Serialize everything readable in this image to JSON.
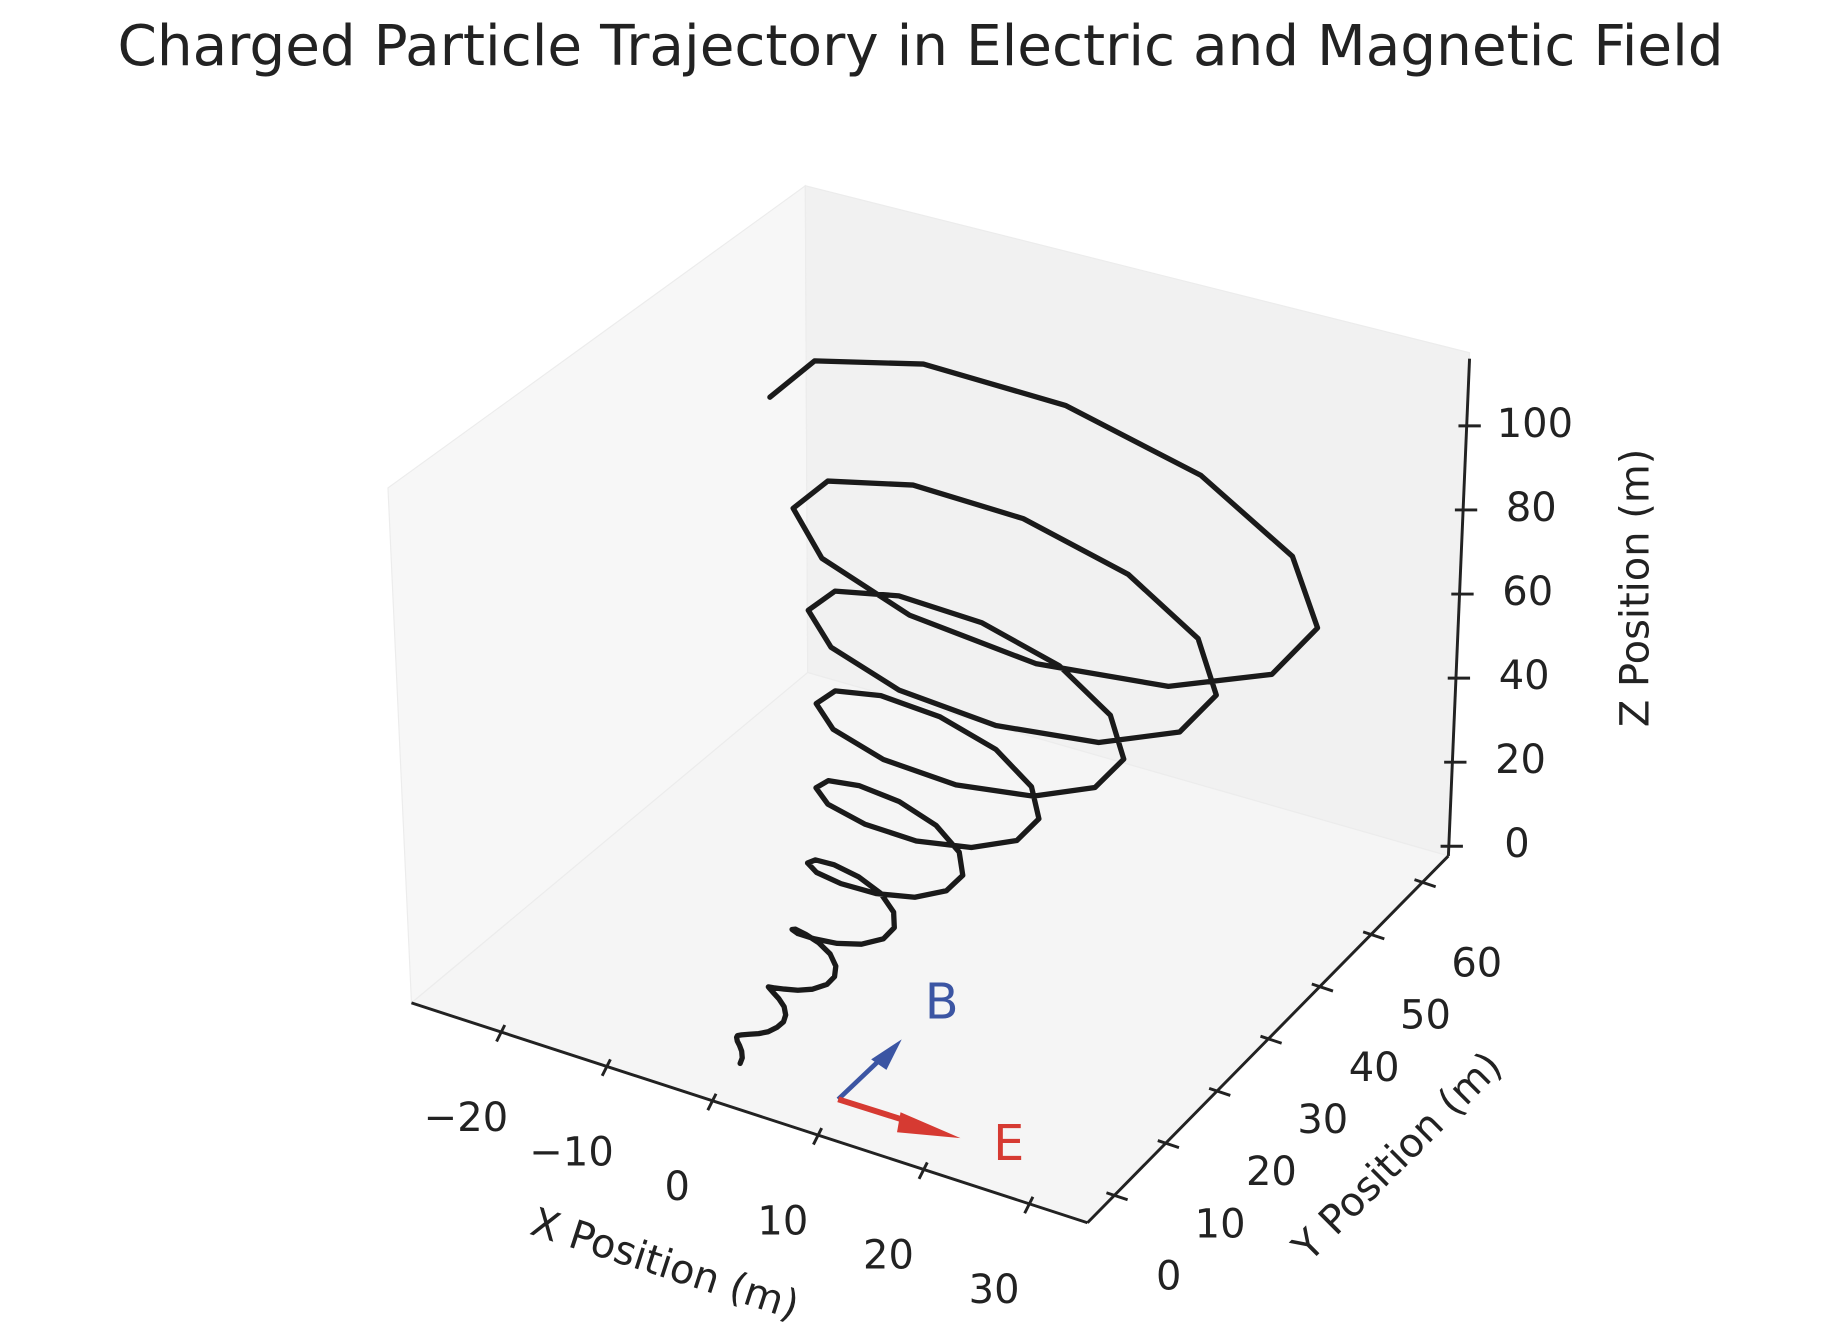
{
  "chart_data": {
    "type": "line3d",
    "title": "Charged Particle Trajectory in Electric and Magnetic Field",
    "x_label": "X Position (m)",
    "y_label": "Y Position (m)",
    "z_label": "Z Position (m)",
    "xlim": [
      -28.5,
      35.5
    ],
    "ylim": [
      -5.3,
      65
    ],
    "zlim": [
      -2.3,
      116
    ],
    "xticks": [
      {
        "value": -20,
        "label": "−20"
      },
      {
        "value": -10,
        "label": "−10"
      },
      0,
      10,
      20,
      30
    ],
    "yticks": [
      0,
      10,
      20,
      30,
      40,
      50,
      60
    ],
    "zticks": [
      0,
      20,
      40,
      60,
      80,
      100
    ],
    "series": [
      {
        "color": "#1a1a1a",
        "x": [
          0,
          -0.1,
          -0.5,
          -1,
          -1.5,
          -1.9,
          -2.1,
          -2.0,
          -1.6,
          -1,
          -0.4,
          0.1,
          0.4,
          0.3,
          -0.2,
          -1,
          -1.8,
          -2.5,
          -2.9,
          -2.7,
          -2.0,
          -1,
          0.1,
          1.1,
          1.5,
          1.3,
          0.4,
          -1,
          -2.5,
          -3.8,
          -4.4,
          -4.1,
          -2.9,
          -1,
          1,
          2.7,
          3.4,
          3.0,
          1.4,
          -1,
          -3.6,
          -5.7,
          -6.7,
          -6.1,
          -4.1,
          -1,
          2.3,
          4.9,
          6.1,
          5.4,
          2.8,
          -1,
          -5.1,
          -8.3,
          -9.7,
          -8.8,
          -5.6,
          -1,
          3.9,
          7.8,
          9.5,
          8.4,
          4.6,
          -1,
          -6.9,
          -11.5,
          -13.5,
          -12.1,
          -7.6,
          -1,
          6,
          11.4,
          13.7,
          12,
          6.7,
          -1,
          -9.1,
          -15.4,
          -18.1,
          -16.1,
          -9.9,
          -1,
          8.4,
          15.6,
          18.6,
          16.4,
          9.3,
          -1,
          -11.7,
          -20,
          -23.4,
          -20.8,
          -12.7,
          -1,
          11.2,
          20.5,
          24.3,
          21.4,
          12.2,
          -1,
          -14.7,
          -25.2,
          -29.5
        ],
        "y": [
          0,
          0.6,
          1.3,
          1.9,
          2.5,
          3.2,
          3.8,
          4.4,
          5.1,
          5.7,
          6.3,
          7,
          7.6,
          8.2,
          8.9,
          9.5,
          10.1,
          10.8,
          11.4,
          12,
          12.7,
          13.3,
          13.9,
          14.6,
          15.2,
          15.8,
          16.5,
          17.1,
          17.7,
          18.4,
          19,
          19.6,
          20.3,
          20.9,
          21.5,
          22.2,
          22.8,
          23.4,
          24.1,
          24.7,
          25.3,
          26,
          26.6,
          27.2,
          27.9,
          28.5,
          29.1,
          29.8,
          30.4,
          31,
          31.7,
          32.3,
          32.9,
          33.6,
          34.2,
          34.8,
          35.5,
          36.1,
          36.7,
          37.4,
          38,
          38.6,
          39.3,
          39.9,
          40.5,
          41.2,
          41.8,
          42.4,
          43.1,
          43.7,
          44.3,
          45,
          45.6,
          46.2,
          46.9,
          47.5,
          48.1,
          48.8,
          49.4,
          50,
          50.7,
          51.3,
          51.9,
          52.6,
          53.2,
          53.8,
          54.5,
          55.1,
          55.7,
          56.4,
          57,
          57.6,
          58.3,
          58.9,
          59.5,
          60.2,
          60.8,
          61.4,
          62.1,
          62.7,
          63.3,
          64,
          64.6
        ],
        "z": [
          0,
          0.5,
          0.9,
          1.1,
          1,
          0.7,
          0.2,
          -0.3,
          -0.7,
          -0.8,
          -0.6,
          0,
          0.8,
          1.6,
          2.3,
          2.8,
          2.8,
          2.4,
          1.7,
          0.9,
          0.3,
          0.1,
          0.5,
          1.6,
          3,
          4.6,
          5.9,
          6.7,
          6.7,
          6,
          4.7,
          3.2,
          2.1,
          1.8,
          2.5,
          4.3,
          6.8,
          9.4,
          11.7,
          12.9,
          12.9,
          11.5,
          9.2,
          6.7,
          4.8,
          4.2,
          5.3,
          8.1,
          12,
          16.2,
          19.6,
          21.4,
          21.1,
          18.8,
          15.2,
          11.3,
          8.3,
          7.3,
          9,
          13,
          18.8,
          24.8,
          29.7,
          32.1,
          31.6,
          28.1,
          22.7,
          17,
          12.6,
          11.2,
          13.5,
          19.1,
          27,
          35.3,
          41.9,
          45.1,
          44.1,
          39.2,
          31.7,
          23.8,
          17.8,
          15.9,
          18.8,
          26.3,
          36.8,
          47.7,
          56.3,
          60.4,
          58.9,
          52.2,
          42.2,
          31.7,
          23.9,
          21.2,
          25,
          34.6,
          48,
          61.9,
          72.8,
          77.9,
          75.8,
          67.1,
          54.2
        ]
      }
    ],
    "annotations": [
      {
        "text": "B",
        "color": "#3b55a3"
      },
      {
        "text": "E",
        "color": "#d63a32"
      }
    ]
  }
}
